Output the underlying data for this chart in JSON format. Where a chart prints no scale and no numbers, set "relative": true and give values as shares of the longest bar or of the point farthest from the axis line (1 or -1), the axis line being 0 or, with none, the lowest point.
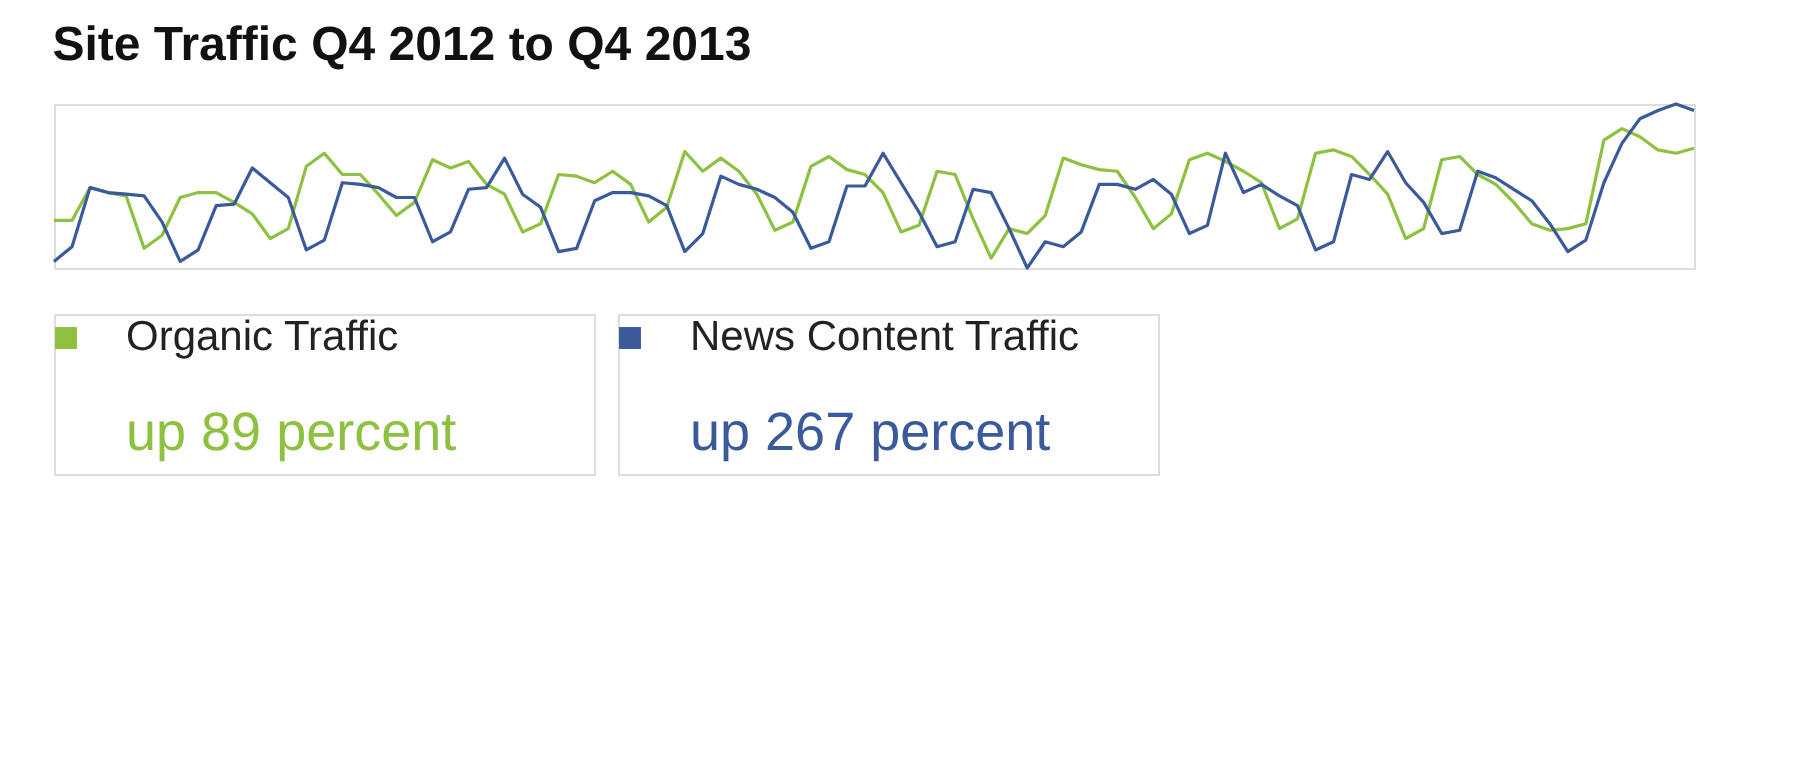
{
  "chart_data": {
    "type": "line",
    "title": "Site Traffic Q4 2012 to Q4 2013",
    "relative": true,
    "legend": "bottom",
    "marker": "none",
    "line_style": "solid",
    "categories": [
      null,
      null,
      null,
      null,
      null,
      null,
      null,
      null,
      null,
      null,
      null,
      null,
      null,
      null,
      null,
      null,
      null,
      null,
      null,
      null,
      null,
      null,
      null,
      null,
      null,
      null,
      null,
      null,
      null,
      null,
      null,
      null,
      null,
      null,
      null,
      null,
      null,
      null,
      null,
      null,
      null,
      null,
      null,
      null,
      null,
      null,
      null,
      null,
      null,
      null,
      null,
      null,
      null,
      null,
      null,
      null,
      null,
      null,
      null,
      null,
      null,
      null,
      null,
      null,
      null,
      null,
      null,
      null,
      null,
      null,
      null,
      null,
      null,
      null,
      null,
      null,
      null,
      null,
      null,
      null,
      null,
      null,
      null,
      null,
      null,
      null,
      null,
      null,
      null,
      null,
      null,
      null
    ],
    "series": [
      {
        "name": "Organic Traffic",
        "color": "#8dc13f",
        "values": [
          0.29,
          0.29,
          0.49,
          0.46,
          0.44,
          0.12,
          0.2,
          0.43,
          0.46,
          0.46,
          0.4,
          0.33,
          0.18,
          0.24,
          0.62,
          0.7,
          0.57,
          0.57,
          0.45,
          0.32,
          0.4,
          0.66,
          0.61,
          0.65,
          0.51,
          0.45,
          0.22,
          0.27,
          0.57,
          0.56,
          0.52,
          0.59,
          0.51,
          0.28,
          0.37,
          0.71,
          0.59,
          0.67,
          0.59,
          0.45,
          0.23,
          0.28,
          0.62,
          0.68,
          0.6,
          0.57,
          0.46,
          0.22,
          0.26,
          0.59,
          0.57,
          0.3,
          0.06,
          0.24,
          0.21,
          0.32,
          0.67,
          0.63,
          0.6,
          0.59,
          0.43,
          0.24,
          0.33,
          0.66,
          0.7,
          0.65,
          0.59,
          0.52,
          0.24,
          0.3,
          0.7,
          0.72,
          0.68,
          0.57,
          0.45,
          0.18,
          0.24,
          0.66,
          0.68,
          0.57,
          0.51,
          0.4,
          0.27,
          0.23,
          0.24,
          0.27,
          0.78,
          0.85,
          0.8,
          0.72,
          0.7,
          0.73
        ]
      },
      {
        "name": "News Content Traffic",
        "color": "#3a5a9b",
        "values": [
          0.04,
          0.13,
          0.49,
          0.46,
          0.45,
          0.44,
          0.28,
          0.04,
          0.11,
          0.38,
          0.39,
          0.61,
          0.52,
          0.43,
          0.11,
          0.17,
          0.52,
          0.51,
          0.49,
          0.43,
          0.43,
          0.16,
          0.22,
          0.48,
          0.49,
          0.67,
          0.45,
          0.37,
          0.1,
          0.12,
          0.41,
          0.46,
          0.46,
          0.44,
          0.38,
          0.1,
          0.21,
          0.56,
          0.51,
          0.48,
          0.43,
          0.34,
          0.12,
          0.16,
          0.5,
          0.5,
          0.7,
          0.52,
          0.34,
          0.13,
          0.16,
          0.48,
          0.46,
          0.24,
          0,
          0.16,
          0.13,
          0.22,
          0.51,
          0.51,
          0.48,
          0.54,
          0.45,
          0.21,
          0.26,
          0.7,
          0.46,
          0.51,
          0.44,
          0.38,
          0.11,
          0.16,
          0.57,
          0.54,
          0.71,
          0.52,
          0.4,
          0.21,
          0.23,
          0.59,
          0.55,
          0.48,
          0.41,
          0.27,
          0.1,
          0.17,
          0.52,
          0.76,
          0.91,
          0.96,
          1,
          0.96
        ]
      }
    ],
    "annotations": [
      "up 89 percent",
      "up 267 percent"
    ]
  }
}
